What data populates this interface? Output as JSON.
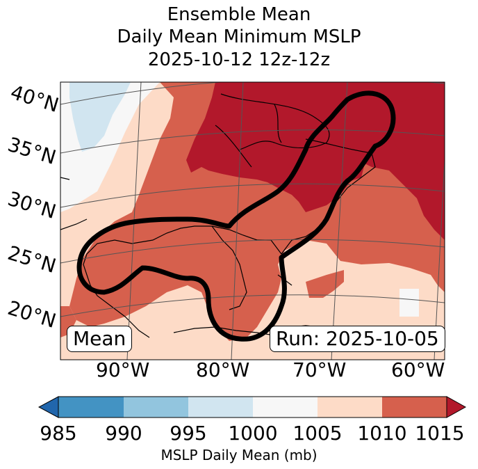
{
  "title": {
    "line1": "Ensemble Mean",
    "line2": "Daily Mean Minimum MSLP",
    "line3": "2025-10-12 12z-12z"
  },
  "latitude_labels": [
    "40°N",
    "35°N",
    "30°N",
    "25°N",
    "20°N"
  ],
  "longitude_labels": [
    "90°W",
    "80°W",
    "70°W",
    "60°W"
  ],
  "mean_box": "Mean",
  "run_box": "Run: 2025-10-05",
  "colorbar": {
    "ticks": [
      "985",
      "990",
      "995",
      "1000",
      "1005",
      "1010",
      "1015"
    ],
    "label": "MSLP Daily Mean (mb)",
    "colors": [
      "#2166ac",
      "#4393c3",
      "#92c5de",
      "#d1e5f0",
      "#f7f7f7",
      "#fddbc7",
      "#d6604d",
      "#b2182b"
    ]
  },
  "fill_colors": {
    "r995_1000": "#d1e5f0",
    "r1000_1005": "#f7f7f7",
    "r1005_1010": "#fddbc7",
    "r1010_1015": "#d6604d",
    "r_above_1015": "#b2182b"
  }
}
